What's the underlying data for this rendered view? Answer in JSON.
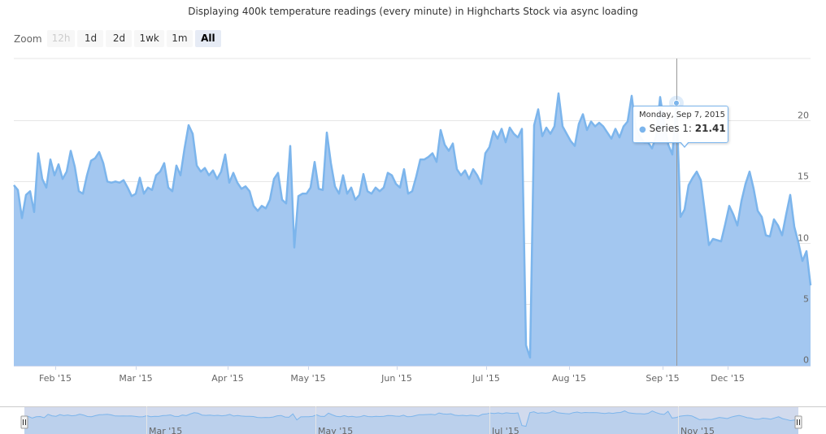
{
  "title": "Displaying 400k temperature readings (every minute) in Highcharts Stock via async loading",
  "zoom": {
    "label": "Zoom",
    "buttons": [
      {
        "label": "12h",
        "state": "disabled"
      },
      {
        "label": "1d",
        "state": "normal"
      },
      {
        "label": "2d",
        "state": "normal"
      },
      {
        "label": "1wk",
        "state": "normal"
      },
      {
        "label": "1m",
        "state": "normal"
      },
      {
        "label": "All",
        "state": "selected"
      }
    ]
  },
  "tooltip": {
    "date": "Monday, Sep 7, 2015",
    "series_label": "Series 1:",
    "value": "21.41"
  },
  "colors": {
    "series": "#7cb5ec",
    "fill": "#a3c7f0",
    "grid": "#e6e6e6"
  },
  "chart_data": {
    "type": "area",
    "title": "Displaying 400k temperature readings (every minute) in Highcharts Stock via async loading",
    "xlabel": "",
    "ylabel": "",
    "ylim": [
      0,
      25
    ],
    "yticks": [
      0,
      5,
      10,
      15,
      20
    ],
    "grid": true,
    "x_tick_labels": [
      "Feb '15",
      "Mar '15",
      "Apr '15",
      "May '15",
      "Jun '15",
      "Jul '15",
      "Aug '15",
      "Sep '15",
      "Dec '15"
    ],
    "navigator_labels": [
      "Mar '15",
      "May '15",
      "Jul '15",
      "Nov '15"
    ],
    "series": [
      {
        "name": "Series 1",
        "values": [
          14.7,
          14.3,
          12.0,
          13.9,
          14.2,
          12.5,
          17.3,
          15.2,
          14.5,
          16.8,
          15.5,
          16.4,
          15.2,
          15.8,
          17.5,
          16.2,
          14.2,
          14.0,
          15.5,
          16.7,
          16.9,
          17.4,
          16.5,
          15.0,
          14.9,
          15.0,
          14.9,
          15.1,
          14.5,
          13.8,
          14.0,
          15.3,
          14.0,
          14.5,
          14.3,
          15.5,
          15.8,
          16.5,
          14.5,
          14.2,
          16.3,
          15.5,
          17.7,
          19.6,
          18.9,
          16.3,
          15.8,
          16.1,
          15.5,
          15.9,
          15.2,
          15.8,
          17.2,
          14.9,
          15.7,
          14.9,
          14.4,
          14.6,
          14.2,
          13.0,
          12.6,
          13.0,
          12.8,
          13.5,
          15.2,
          15.7,
          13.5,
          13.2,
          17.9,
          9.6,
          13.8,
          14.0,
          14.0,
          14.5,
          16.6,
          14.4,
          14.3,
          19.0,
          16.5,
          14.6,
          14.0,
          15.5,
          14.0,
          14.5,
          13.5,
          13.9,
          15.6,
          14.2,
          14.0,
          14.5,
          14.2,
          14.5,
          15.7,
          15.5,
          14.8,
          14.5,
          16.0,
          14.0,
          14.2,
          15.4,
          16.8,
          16.8,
          17.0,
          17.3,
          16.6,
          19.2,
          18.0,
          17.5,
          18.1,
          16.0,
          15.5,
          15.9,
          15.2,
          16.0,
          15.5,
          14.8,
          17.3,
          17.8,
          19.1,
          18.5,
          19.3,
          18.2,
          19.4,
          18.9,
          18.6,
          19.3,
          1.6,
          0.6,
          19.6,
          20.9,
          18.7,
          19.4,
          18.9,
          19.5,
          22.2,
          19.5,
          18.9,
          18.3,
          17.9,
          19.7,
          20.5,
          19.2,
          19.9,
          19.5,
          19.8,
          19.5,
          19.0,
          18.5,
          19.3,
          18.6,
          19.5,
          19.9,
          22.0,
          19.4,
          18.7,
          18.2,
          18.2,
          17.7,
          18.7,
          21.9,
          19.7,
          18.0,
          17.2,
          21.5,
          12.1,
          12.7,
          14.7,
          15.3,
          15.8,
          15.1,
          12.5,
          9.8,
          10.3,
          10.2,
          10.1,
          11.5,
          13.0,
          12.3,
          11.4,
          13.4,
          14.8,
          15.8,
          14.4,
          12.6,
          12.1,
          10.6,
          10.5,
          11.9,
          11.4,
          10.6,
          12.3,
          13.9,
          11.3,
          10.0,
          8.5,
          9.3,
          6.5
        ]
      }
    ]
  }
}
